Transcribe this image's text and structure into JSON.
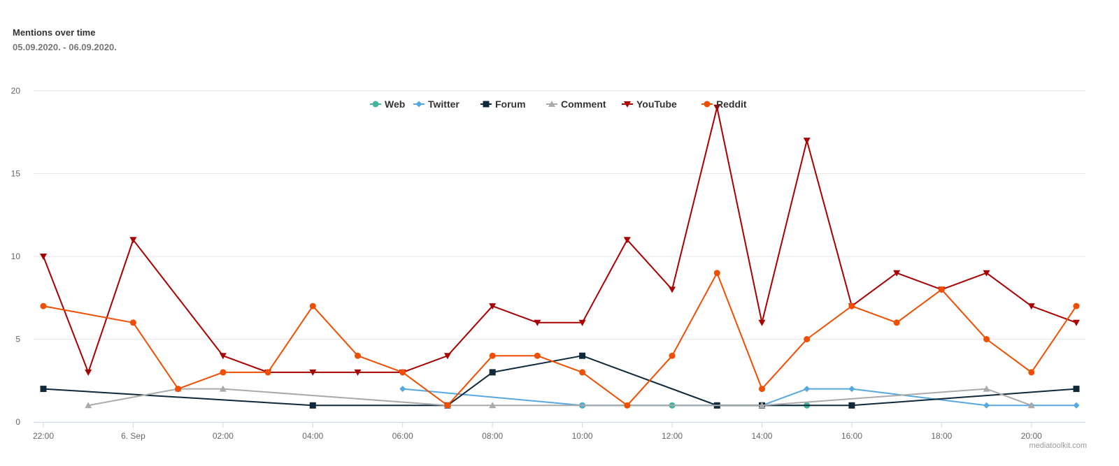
{
  "chart_data": {
    "type": "line",
    "title": "Mentions over time",
    "subtitle": "05.09.2020. - 06.09.2020.",
    "xlabel": "",
    "ylabel": "",
    "ylim": [
      0,
      20
    ],
    "yticks": [
      "0",
      "5",
      "10",
      "15",
      "20"
    ],
    "ytick_values": [
      0,
      5,
      10,
      15,
      20
    ],
    "x": [
      "22:00",
      "23:00",
      "00:00",
      "01:00",
      "02:00",
      "03:00",
      "04:00",
      "05:00",
      "06:00",
      "07:00",
      "08:00",
      "09:00",
      "10:00",
      "11:00",
      "12:00",
      "13:00",
      "14:00",
      "15:00",
      "16:00",
      "17:00",
      "18:00",
      "19:00",
      "20:00",
      "21:00"
    ],
    "xtick_labels": [
      "22:00",
      "6. Sep",
      "02:00",
      "04:00",
      "06:00",
      "08:00",
      "10:00",
      "12:00",
      "14:00",
      "16:00",
      "18:00",
      "20:00"
    ],
    "xtick_indices": [
      0,
      2,
      4,
      6,
      8,
      10,
      12,
      14,
      16,
      18,
      20,
      22
    ],
    "grid": true,
    "legend_position": "top-center",
    "series": [
      {
        "name": "Web",
        "color": "#3fb59a",
        "marker": "circle",
        "values": [
          null,
          null,
          null,
          null,
          null,
          null,
          null,
          null,
          null,
          null,
          null,
          null,
          1,
          null,
          1,
          null,
          null,
          1,
          null,
          null,
          null,
          null,
          null,
          null
        ]
      },
      {
        "name": "Twitter",
        "color": "#58a8e0",
        "marker": "diamond",
        "values": [
          null,
          null,
          null,
          null,
          null,
          null,
          null,
          null,
          2,
          null,
          null,
          null,
          1,
          null,
          null,
          null,
          1,
          2,
          2,
          null,
          null,
          1,
          1,
          1
        ]
      },
      {
        "name": "Forum",
        "color": "#10293a",
        "marker": "square",
        "values": [
          2,
          null,
          null,
          null,
          null,
          null,
          1,
          null,
          null,
          1,
          3,
          null,
          4,
          null,
          null,
          1,
          1,
          null,
          1,
          null,
          null,
          null,
          null,
          2
        ]
      },
      {
        "name": "Comment",
        "color": "#aaaaaa",
        "marker": "triangle",
        "values": [
          null,
          1,
          null,
          2,
          2,
          null,
          null,
          null,
          null,
          1,
          1,
          null,
          null,
          null,
          null,
          null,
          1,
          null,
          null,
          null,
          null,
          2,
          1,
          null
        ]
      },
      {
        "name": "YouTube",
        "color": "#a80000",
        "marker": "triangle-down",
        "values": [
          10,
          3,
          11,
          null,
          4,
          3,
          3,
          3,
          3,
          4,
          7,
          6,
          6,
          11,
          8,
          19,
          6,
          17,
          7,
          9,
          8,
          9,
          7,
          6
        ]
      },
      {
        "name": "Reddit",
        "color": "#f04e00",
        "marker": "circle",
        "values": [
          7,
          null,
          6,
          2,
          3,
          3,
          7,
          4,
          3,
          1,
          4,
          4,
          3,
          1,
          4,
          9,
          2,
          5,
          7,
          6,
          8,
          5,
          3,
          7
        ]
      }
    ]
  },
  "credit": "mediatoolkit.com"
}
